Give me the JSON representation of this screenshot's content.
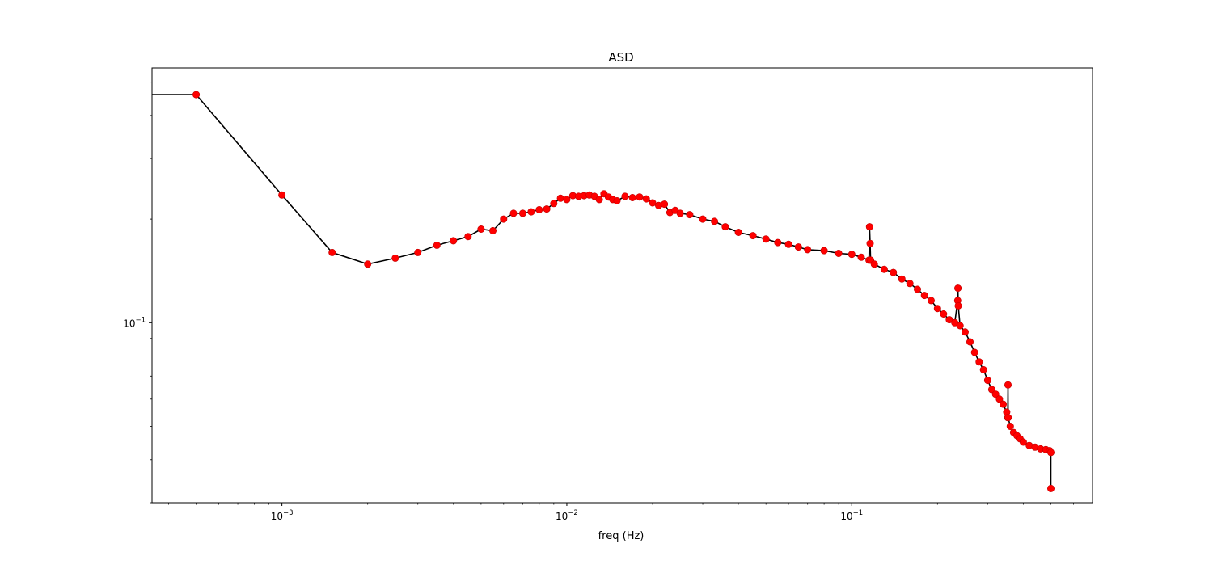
{
  "chart_data": {
    "type": "line",
    "title": "ASD",
    "xlabel": "freq (Hz)",
    "ylabel": "",
    "xscale": "log",
    "yscale": "log",
    "xlim": [
      0.00035,
      0.7
    ],
    "ylim": [
      0.03,
      0.55
    ],
    "x_ticks": [
      {
        "value": 0.001,
        "base": "10",
        "exp": "−3"
      },
      {
        "value": 0.01,
        "base": "10",
        "exp": "−2"
      },
      {
        "value": 0.1,
        "base": "10",
        "exp": "−1"
      }
    ],
    "y_ticks": [
      {
        "value": 0.1,
        "base": "10",
        "exp": "−1"
      }
    ],
    "line_color": "#000000",
    "marker_color": "#ff0000",
    "marker_edge_color": "#c00000",
    "grid": false,
    "series": [
      {
        "values_x": [
          0.00035,
          0.0005,
          0.001,
          0.0015,
          0.002,
          0.0025,
          0.003,
          0.0035,
          0.004,
          0.0045,
          0.005,
          0.0055,
          0.006,
          0.0065,
          0.007,
          0.0075,
          0.008,
          0.0085,
          0.009,
          0.0095,
          0.01,
          0.0105,
          0.011,
          0.0115,
          0.012,
          0.0125,
          0.013,
          0.0135,
          0.014,
          0.0145,
          0.015,
          0.016,
          0.017,
          0.018,
          0.019,
          0.02,
          0.021,
          0.022,
          0.023,
          0.024,
          0.025,
          0.027,
          0.03,
          0.033,
          0.036,
          0.04,
          0.045,
          0.05,
          0.055,
          0.06,
          0.065,
          0.07,
          0.08,
          0.09,
          0.1,
          0.108,
          0.115,
          0.1155,
          0.116,
          0.1165,
          0.12,
          0.13,
          0.14,
          0.15,
          0.16,
          0.17,
          0.18,
          0.19,
          0.2,
          0.21,
          0.22,
          0.23,
          0.2355,
          0.236,
          0.2365,
          0.24,
          0.25,
          0.26,
          0.27,
          0.28,
          0.29,
          0.3,
          0.31,
          0.32,
          0.33,
          0.34,
          0.35,
          0.353,
          0.3535,
          0.354,
          0.36,
          0.37,
          0.38,
          0.39,
          0.4,
          0.42,
          0.44,
          0.46,
          0.48,
          0.495,
          0.4999,
          0.5
        ],
        "values_y": [
          0.46,
          0.46,
          0.235,
          0.16,
          0.148,
          0.154,
          0.16,
          0.168,
          0.173,
          0.178,
          0.187,
          0.185,
          0.2,
          0.208,
          0.208,
          0.21,
          0.213,
          0.214,
          0.222,
          0.23,
          0.228,
          0.234,
          0.233,
          0.234,
          0.235,
          0.233,
          0.228,
          0.237,
          0.232,
          0.228,
          0.226,
          0.233,
          0.231,
          0.232,
          0.229,
          0.223,
          0.219,
          0.221,
          0.209,
          0.212,
          0.208,
          0.206,
          0.2,
          0.197,
          0.19,
          0.183,
          0.179,
          0.175,
          0.171,
          0.169,
          0.166,
          0.163,
          0.162,
          0.159,
          0.158,
          0.155,
          0.152,
          0.19,
          0.17,
          0.152,
          0.148,
          0.143,
          0.14,
          0.134,
          0.13,
          0.125,
          0.12,
          0.116,
          0.11,
          0.106,
          0.102,
          0.1,
          0.116,
          0.126,
          0.112,
          0.098,
          0.094,
          0.088,
          0.082,
          0.077,
          0.073,
          0.068,
          0.064,
          0.062,
          0.06,
          0.058,
          0.055,
          0.053,
          0.066,
          0.053,
          0.05,
          0.048,
          0.047,
          0.046,
          0.045,
          0.044,
          0.0435,
          0.043,
          0.0428,
          0.0425,
          0.042,
          0.033
        ]
      }
    ]
  }
}
